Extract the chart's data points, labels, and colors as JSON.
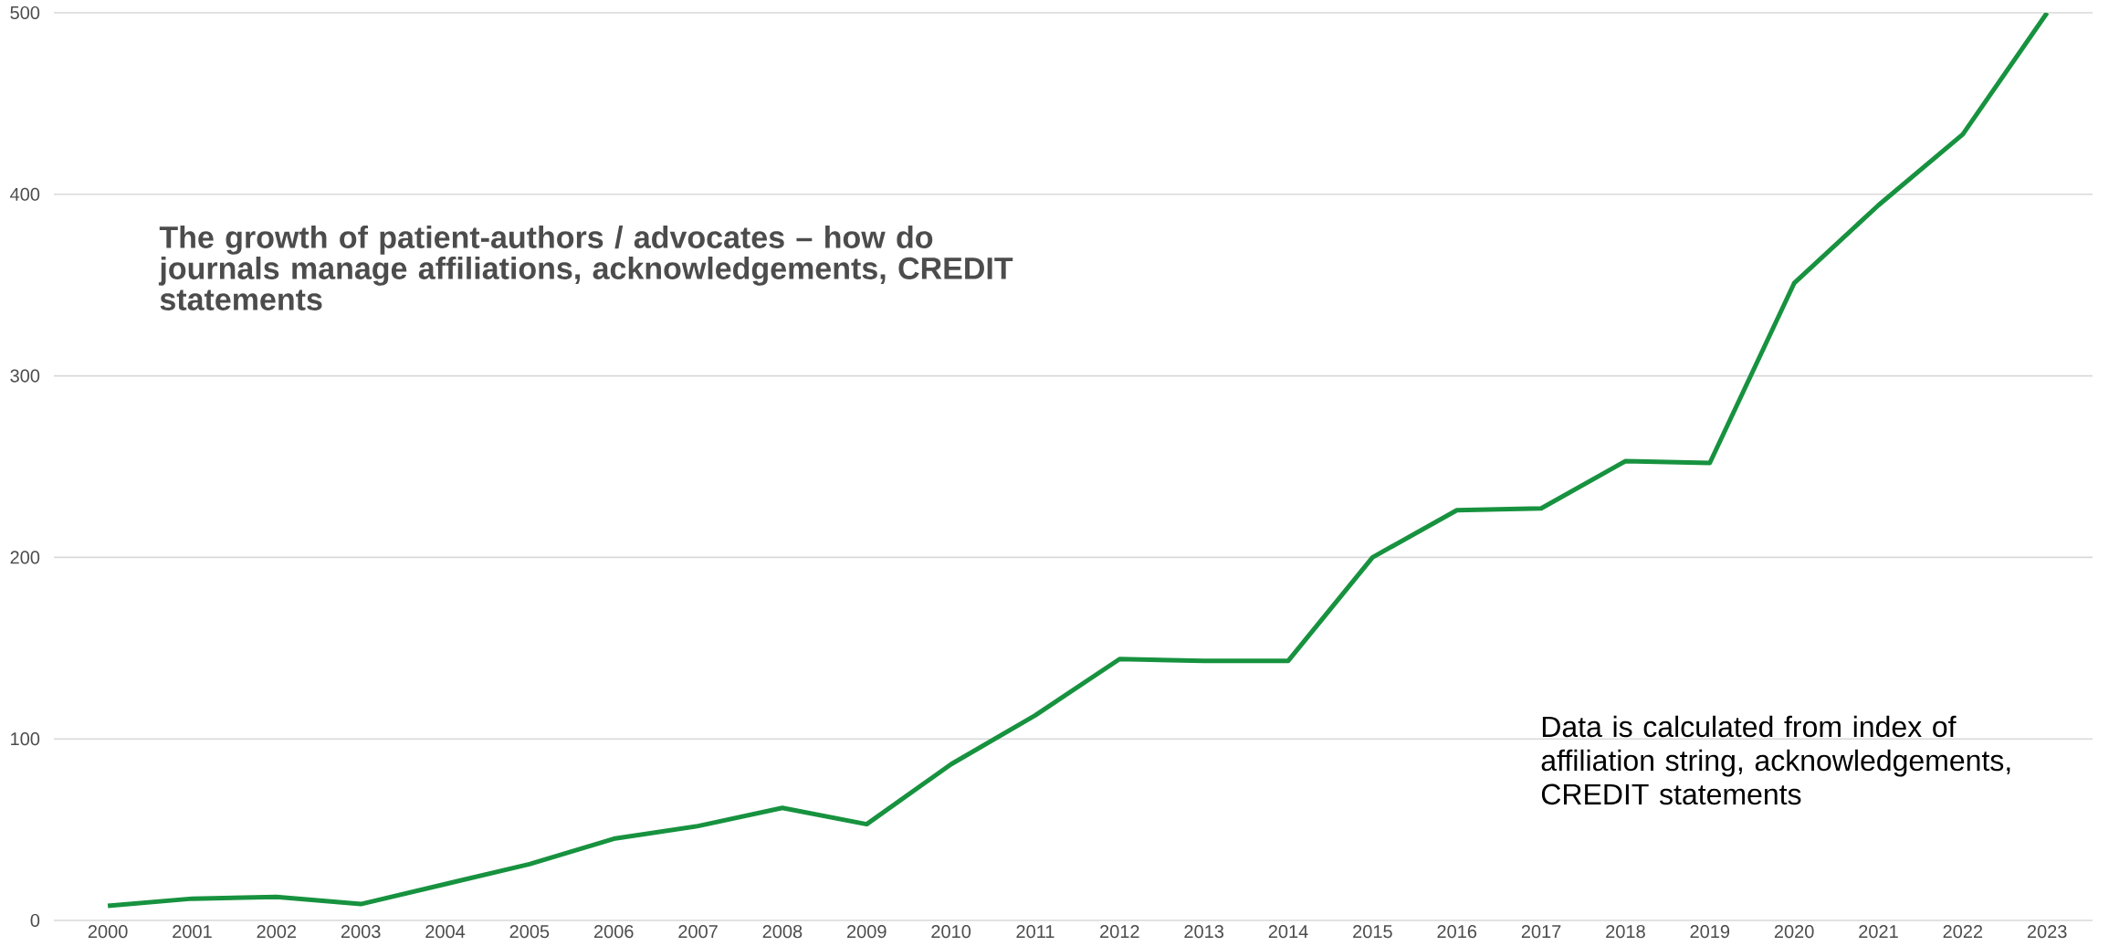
{
  "chart_data": {
    "type": "line",
    "title": "The growth of patient-authors / advocates – how do journals manage affiliations, acknowledgements, CREDIT statements",
    "annotations": [
      "Data is calculated from index of affiliation string, acknowledgements, CREDIT statements"
    ],
    "categories": [
      "2000",
      "2001",
      "2002",
      "2003",
      "2004",
      "2005",
      "2006",
      "2007",
      "2008",
      "2009",
      "2010",
      "2011",
      "2012",
      "2013",
      "2014",
      "2015",
      "2016",
      "2017",
      "2018",
      "2019",
      "2020",
      "2021",
      "2022",
      "2023"
    ],
    "values": [
      8,
      12,
      13,
      9,
      20,
      31,
      45,
      52,
      62,
      53,
      86,
      113,
      144,
      143,
      143,
      200,
      226,
      227,
      253,
      252,
      351,
      394,
      433,
      500
    ],
    "color": "#17923f",
    "ylim": [
      0,
      500
    ],
    "yticks": [
      0,
      100,
      200,
      300,
      400,
      500
    ],
    "grid": "y",
    "marker": "none",
    "line_style": "solid"
  }
}
